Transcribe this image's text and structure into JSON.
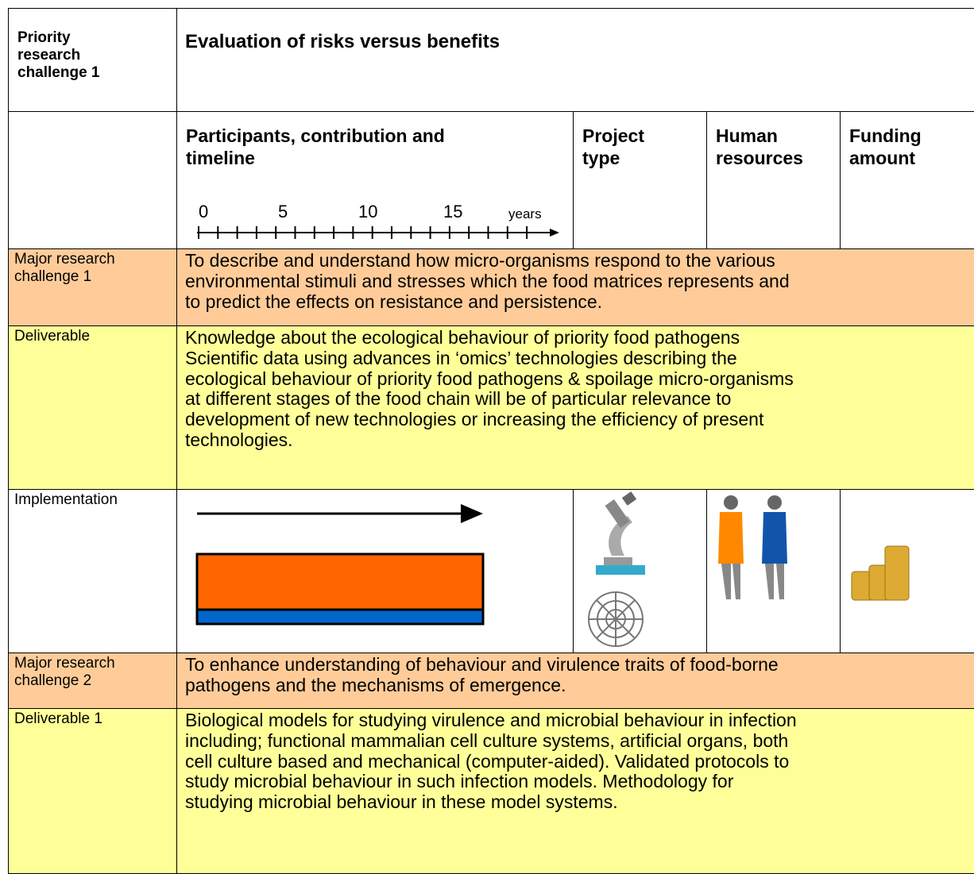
{
  "header": {
    "label": [
      "Priority",
      "research",
      "challenge 1"
    ],
    "title": "Evaluation of risks versus benefits"
  },
  "columns": {
    "participants": [
      "Participants, contribution and",
      "timeline"
    ],
    "project_type": [
      "Project",
      "type"
    ],
    "human_resources": [
      "Human",
      "resources"
    ],
    "funding": [
      "Funding",
      "amount"
    ]
  },
  "timeline": {
    "labels": [
      "0",
      "5",
      "10",
      "15"
    ],
    "unit": "years"
  },
  "rows": [
    {
      "label": [
        "Major research",
        "challenge 1"
      ],
      "text": [
        "To describe and understand how micro-organisms respond to the various",
        "environmental stimuli and stresses which the food matrices represents and",
        "to predict the effects on resistance and persistence."
      ]
    },
    {
      "label": [
        "Deliverable"
      ],
      "text": [
        "Knowledge about the ecological behaviour of priority food pathogens",
        "Scientific data using advances in ‘omics’ technologies describing the",
        "ecological behaviour of priority food pathogens & spoilage micro-organisms",
        "at different stages of the food chain will be of particular relevance to",
        "development of new technologies or increasing the efficiency of present",
        "technologies."
      ]
    },
    {
      "label": [
        "Implementation"
      ]
    },
    {
      "label": [
        "Major research",
        "challenge 2"
      ],
      "text": [
        "To enhance understanding of behaviour and virulence traits of food-borne",
        "pathogens and the mechanisms of emergence."
      ]
    },
    {
      "label": [
        "Deliverable 1"
      ],
      "text": [
        "Biological models for studying virulence and microbial behaviour in infection",
        "including; functional mammalian cell culture systems, artificial organs, both",
        "cell culture based and mechanical (computer-aided). Validated protocols to",
        "study microbial behaviour in such infection models. Methodology for",
        "studying microbial behaviour in these model systems."
      ]
    }
  ]
}
